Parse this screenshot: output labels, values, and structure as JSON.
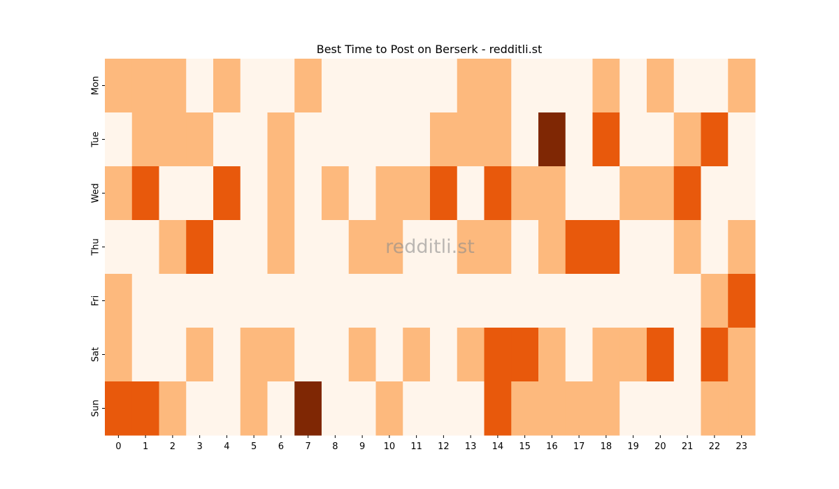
{
  "chart_data": {
    "type": "heatmap",
    "title": "Best Time to Post on Berserk - redditli.st",
    "watermark": "redditli.st",
    "xlabel": "",
    "ylabel": "",
    "x_categories": [
      "0",
      "1",
      "2",
      "3",
      "4",
      "5",
      "6",
      "7",
      "8",
      "9",
      "10",
      "11",
      "12",
      "13",
      "14",
      "15",
      "16",
      "17",
      "18",
      "19",
      "20",
      "21",
      "22",
      "23"
    ],
    "y_categories": [
      "Mon",
      "Tue",
      "Wed",
      "Thu",
      "Fri",
      "Sat",
      "Sun"
    ],
    "level_colors": [
      "#fff5eb",
      "#fdb97d",
      "#e8590c",
      "#7f2704"
    ],
    "values": [
      [
        1,
        1,
        1,
        0,
        1,
        0,
        0,
        1,
        0,
        0,
        0,
        0,
        0,
        1,
        1,
        0,
        0,
        0,
        1,
        0,
        1,
        0,
        0,
        1
      ],
      [
        0,
        1,
        1,
        1,
        0,
        0,
        1,
        0,
        0,
        0,
        0,
        0,
        1,
        1,
        1,
        0,
        3,
        0,
        2,
        0,
        0,
        1,
        2,
        0
      ],
      [
        1,
        2,
        0,
        0,
        2,
        0,
        1,
        0,
        1,
        0,
        1,
        1,
        2,
        0,
        2,
        1,
        1,
        0,
        0,
        1,
        1,
        2,
        0,
        0
      ],
      [
        0,
        0,
        1,
        2,
        0,
        0,
        1,
        0,
        0,
        1,
        1,
        0,
        0,
        1,
        1,
        0,
        1,
        2,
        2,
        0,
        0,
        1,
        0,
        1
      ],
      [
        1,
        0,
        0,
        0,
        0,
        0,
        0,
        0,
        0,
        0,
        0,
        0,
        0,
        0,
        0,
        0,
        0,
        0,
        0,
        0,
        0,
        0,
        1,
        2
      ],
      [
        1,
        0,
        0,
        1,
        0,
        1,
        1,
        0,
        0,
        1,
        0,
        1,
        0,
        1,
        2,
        2,
        1,
        0,
        1,
        1,
        2,
        0,
        2,
        1
      ],
      [
        2,
        2,
        1,
        0,
        0,
        1,
        0,
        3,
        0,
        0,
        1,
        0,
        0,
        0,
        2,
        1,
        1,
        1,
        1,
        0,
        0,
        0,
        1,
        1
      ]
    ]
  }
}
